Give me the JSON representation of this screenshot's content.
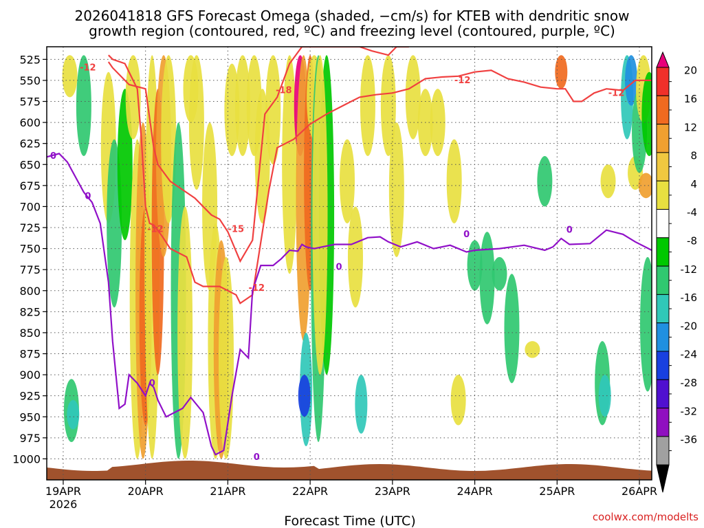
{
  "chart_data": {
    "type": "heatmap",
    "title_lines": [
      "2026041818 GFS Forecast Omega (shaded, −cm/s) for KTEB with dendritic snow",
      "growth region (contoured, red, ºC) and freezing level (contoured, purple, ºC)"
    ],
    "xlabel": "Forecast Time (UTC)",
    "x_tick_labels": [
      "19APR",
      "20APR",
      "21APR",
      "22APR",
      "23APR",
      "24APR",
      "25APR",
      "26APR"
    ],
    "x_sub_label": "2026",
    "xlim": [
      -0.2,
      7.15
    ],
    "y_tick_labels": [
      525,
      550,
      575,
      600,
      625,
      650,
      675,
      700,
      725,
      750,
      775,
      800,
      825,
      850,
      875,
      900,
      925,
      950,
      975,
      1000
    ],
    "ylim": [
      1025,
      510
    ],
    "colorbar": {
      "labels": [
        20,
        16,
        12,
        8,
        4,
        -4,
        -8,
        -12,
        -16,
        -20,
        -24,
        -28,
        -32,
        -36
      ],
      "colors": [
        "#e8007a",
        "#f0302a",
        "#f06a20",
        "#f0a030",
        "#f0c840",
        "#e8e040",
        "#ffffff",
        "#00c800",
        "#30c870",
        "#30c8b8",
        "#2090e0",
        "#1840e0",
        "#5010d0",
        "#9010c0",
        "#a0a0a0",
        "#000000"
      ]
    },
    "ground_color": "#a0522d",
    "omega_blobs": [
      {
        "x": 0.08,
        "p1": 520,
        "p2": 570,
        "v": 6
      },
      {
        "x": 0.1,
        "p1": 905,
        "p2": 980,
        "v": -8
      },
      {
        "x": 0.12,
        "p1": 930,
        "p2": 965,
        "v": -12
      },
      {
        "x": 0.25,
        "p1": 520,
        "p2": 640,
        "v": -8
      },
      {
        "x": 0.55,
        "p1": 540,
        "p2": 720,
        "v": 6
      },
      {
        "x": 0.62,
        "p1": 620,
        "p2": 820,
        "v": -8
      },
      {
        "x": 0.75,
        "p1": 560,
        "p2": 740,
        "v": -6
      },
      {
        "x": 0.85,
        "p1": 520,
        "p2": 620,
        "v": 6
      },
      {
        "x": 0.9,
        "p1": 620,
        "p2": 1000,
        "v": 6
      },
      {
        "x": 0.97,
        "p1": 600,
        "p2": 1000,
        "v": 9
      },
      {
        "x": 1.0,
        "p1": 700,
        "p2": 960,
        "v": 13
      },
      {
        "x": 1.08,
        "p1": 520,
        "p2": 1000,
        "v": 7
      },
      {
        "x": 1.15,
        "p1": 560,
        "p2": 900,
        "v": 12
      },
      {
        "x": 1.22,
        "p1": 520,
        "p2": 760,
        "v": 10
      },
      {
        "x": 1.28,
        "p1": 520,
        "p2": 720,
        "v": 6
      },
      {
        "x": 1.4,
        "p1": 600,
        "p2": 1000,
        "v": -10
      },
      {
        "x": 1.48,
        "p1": 700,
        "p2": 1000,
        "v": 7
      },
      {
        "x": 1.55,
        "p1": 520,
        "p2": 600,
        "v": 6
      },
      {
        "x": 1.62,
        "p1": 520,
        "p2": 680,
        "v": 6
      },
      {
        "x": 1.78,
        "p1": 600,
        "p2": 800,
        "v": 7
      },
      {
        "x": 1.85,
        "p1": 720,
        "p2": 1000,
        "v": 6
      },
      {
        "x": 1.92,
        "p1": 740,
        "p2": 1000,
        "v": 9
      },
      {
        "x": 1.98,
        "p1": 760,
        "p2": 1000,
        "v": 7
      },
      {
        "x": 2.05,
        "p1": 530,
        "p2": 640,
        "v": 6
      },
      {
        "x": 2.18,
        "p1": 520,
        "p2": 640,
        "v": 6
      },
      {
        "x": 2.32,
        "p1": 520,
        "p2": 640,
        "v": 7
      },
      {
        "x": 2.42,
        "p1": 560,
        "p2": 720,
        "v": 6
      },
      {
        "x": 2.55,
        "p1": 520,
        "p2": 650,
        "v": 6
      },
      {
        "x": 2.75,
        "p1": 520,
        "p2": 780,
        "v": 6
      },
      {
        "x": 2.88,
        "p1": 520,
        "p2": 640,
        "v": 20
      },
      {
        "x": 2.92,
        "p1": 520,
        "p2": 860,
        "v": 10
      },
      {
        "x": 3.0,
        "p1": 520,
        "p2": 800,
        "v": 13
      },
      {
        "x": 3.05,
        "p1": 520,
        "p2": 620,
        "v": 7
      },
      {
        "x": 2.95,
        "p1": 850,
        "p2": 985,
        "v": -14
      },
      {
        "x": 2.93,
        "p1": 900,
        "p2": 950,
        "v": -22
      },
      {
        "x": 3.1,
        "p1": 520,
        "p2": 980,
        "v": -8
      },
      {
        "x": 3.2,
        "p1": 520,
        "p2": 900,
        "v": -6
      },
      {
        "x": 3.12,
        "p1": 520,
        "p2": 900,
        "v": 6
      },
      {
        "x": 3.45,
        "p1": 620,
        "p2": 720,
        "v": 6
      },
      {
        "x": 3.55,
        "p1": 700,
        "p2": 820,
        "v": 6
      },
      {
        "x": 3.62,
        "p1": 900,
        "p2": 970,
        "v": -14
      },
      {
        "x": 3.7,
        "p1": 520,
        "p2": 640,
        "v": 6
      },
      {
        "x": 3.95,
        "p1": 520,
        "p2": 640,
        "v": 6
      },
      {
        "x": 4.05,
        "p1": 600,
        "p2": 760,
        "v": 6
      },
      {
        "x": 4.25,
        "p1": 520,
        "p2": 620,
        "v": 6
      },
      {
        "x": 4.4,
        "p1": 560,
        "p2": 640,
        "v": 6
      },
      {
        "x": 4.55,
        "p1": 560,
        "p2": 640,
        "v": 6
      },
      {
        "x": 4.75,
        "p1": 620,
        "p2": 720,
        "v": 6
      },
      {
        "x": 4.8,
        "p1": 900,
        "p2": 960,
        "v": 6
      },
      {
        "x": 5.0,
        "p1": 740,
        "p2": 800,
        "v": -8
      },
      {
        "x": 5.15,
        "p1": 730,
        "p2": 840,
        "v": -8
      },
      {
        "x": 5.3,
        "p1": 760,
        "p2": 800,
        "v": -8
      },
      {
        "x": 5.45,
        "p1": 780,
        "p2": 910,
        "v": -8
      },
      {
        "x": 5.7,
        "p1": 860,
        "p2": 880,
        "v": 6
      },
      {
        "x": 5.85,
        "p1": 640,
        "p2": 700,
        "v": -8
      },
      {
        "x": 6.05,
        "p1": 520,
        "p2": 560,
        "v": 12
      },
      {
        "x": 6.55,
        "p1": 860,
        "p2": 960,
        "v": -8
      },
      {
        "x": 6.58,
        "p1": 900,
        "p2": 950,
        "v": -14
      },
      {
        "x": 6.62,
        "p1": 650,
        "p2": 690,
        "v": 6
      },
      {
        "x": 6.85,
        "p1": 520,
        "p2": 620,
        "v": -12
      },
      {
        "x": 6.9,
        "p1": 520,
        "p2": 580,
        "v": -18
      },
      {
        "x": 6.95,
        "p1": 640,
        "p2": 680,
        "v": 6
      },
      {
        "x": 7.0,
        "p1": 560,
        "p2": 660,
        "v": -8
      },
      {
        "x": 7.05,
        "p1": 520,
        "p2": 600,
        "v": 6
      },
      {
        "x": 7.08,
        "p1": 660,
        "p2": 690,
        "v": 9
      },
      {
        "x": 7.1,
        "p1": 760,
        "p2": 920,
        "v": -8
      },
      {
        "x": 7.12,
        "p1": 540,
        "p2": 640,
        "v": -6
      }
    ],
    "freezing_level_0C": {
      "x": [
        -0.2,
        -0.05,
        0.05,
        0.15,
        0.25,
        0.35,
        0.45,
        0.55,
        0.6,
        0.68,
        0.75,
        0.8,
        0.9,
        1.0,
        1.05,
        1.1,
        1.15,
        1.25,
        1.35,
        1.45,
        1.55,
        1.7,
        1.8,
        1.85,
        1.95,
        2.05,
        2.15,
        2.25,
        2.3,
        2.4,
        2.55,
        2.65,
        2.75,
        2.85,
        2.9,
        2.95,
        3.0,
        3.05,
        3.15,
        3.3,
        3.5,
        3.7,
        3.85,
        3.95,
        4.1,
        4.3,
        4.5,
        4.7,
        4.9,
        5.0,
        5.3,
        5.6,
        5.85,
        5.95,
        6.05,
        6.15,
        6.4,
        6.6,
        6.8,
        6.95,
        7.15
      ],
      "p": [
        641,
        637,
        647,
        665,
        683,
        695,
        720,
        790,
        860,
        940,
        935,
        900,
        910,
        925,
        910,
        915,
        930,
        950,
        945,
        940,
        927,
        945,
        985,
        995,
        990,
        925,
        870,
        880,
        800,
        770,
        770,
        762,
        752,
        753,
        745,
        748,
        749,
        750,
        748,
        745,
        745,
        737,
        736,
        742,
        748,
        742,
        750,
        746,
        754,
        752,
        750,
        746,
        752,
        748,
        738,
        745,
        744,
        728,
        733,
        742,
        752
      ]
    },
    "dgz_contours": [
      {
        "name": "dgz-warm-edge",
        "x": [
          0.55,
          0.6,
          0.75,
          0.9,
          0.95,
          1.0,
          1.05,
          1.1,
          1.2,
          1.3,
          1.5,
          1.6,
          1.7,
          1.9,
          2.0,
          2.1,
          2.15,
          2.3,
          2.5,
          2.6,
          2.8,
          3.0,
          3.2,
          3.4,
          3.6,
          3.8,
          4.0,
          4.2,
          4.4,
          4.6,
          4.8,
          5.0,
          5.2,
          5.4,
          5.6,
          5.8,
          6.0,
          6.1,
          6.2,
          6.3,
          6.45,
          6.6,
          6.8,
          6.95,
          7.15
        ],
        "p": [
          520,
          525,
          530,
          560,
          620,
          700,
          720,
          722,
          735,
          750,
          760,
          790,
          795,
          795,
          800,
          805,
          815,
          805,
          680,
          630,
          620,
          602,
          590,
          580,
          570,
          567,
          565,
          560,
          548,
          546,
          545,
          540,
          538,
          548,
          552,
          558,
          560,
          560,
          575,
          575,
          565,
          560,
          562,
          550,
          550
        ]
      },
      {
        "name": "dgz-cold-edge",
        "x": [
          0.55,
          0.6,
          0.8,
          1.0,
          1.1,
          1.15,
          1.3,
          1.45,
          1.6,
          1.8,
          1.9,
          2.0,
          2.15,
          2.3,
          2.45,
          2.6,
          2.75,
          2.9,
          3.1,
          3.3,
          3.5,
          3.6,
          3.75,
          3.95,
          4.05,
          4.2
        ],
        "p": [
          528,
          535,
          555,
          560,
          630,
          650,
          670,
          680,
          690,
          710,
          715,
          730,
          765,
          740,
          590,
          570,
          530,
          510,
          510,
          510,
          510,
          510,
          515,
          520,
          510,
          510
        ]
      }
    ],
    "annotations": [
      {
        "text": "0",
        "x": -0.12,
        "p": 640,
        "series": "freeze"
      },
      {
        "text": "0",
        "x": 0.3,
        "p": 688,
        "series": "freeze"
      },
      {
        "text": "0",
        "x": 1.08,
        "p": 910,
        "series": "freeze"
      },
      {
        "text": "0",
        "x": 2.35,
        "p": 998,
        "series": "freeze"
      },
      {
        "text": "0",
        "x": 3.35,
        "p": 772,
        "series": "freeze"
      },
      {
        "text": "0",
        "x": 4.9,
        "p": 733,
        "series": "freeze"
      },
      {
        "text": "0",
        "x": 6.15,
        "p": 728,
        "series": "freeze"
      },
      {
        "text": "-12",
        "x": 0.3,
        "p": 535,
        "series": "dgz"
      },
      {
        "text": "-12",
        "x": 1.12,
        "p": 727,
        "series": "dgz"
      },
      {
        "text": "-15",
        "x": 2.1,
        "p": 727,
        "series": "dgz"
      },
      {
        "text": "-18",
        "x": 2.68,
        "p": 562,
        "series": "dgz"
      },
      {
        "text": "-12",
        "x": 2.35,
        "p": 797,
        "series": "dgz"
      },
      {
        "text": "-12",
        "x": 4.85,
        "p": 550,
        "series": "dgz"
      },
      {
        "text": "-12",
        "x": 6.72,
        "p": 565,
        "series": "dgz"
      }
    ],
    "colors": {
      "dgz": "#f04040",
      "freeze": "#9010c8",
      "grid": "#555555"
    }
  },
  "credit": "coolwx.com/modelts"
}
